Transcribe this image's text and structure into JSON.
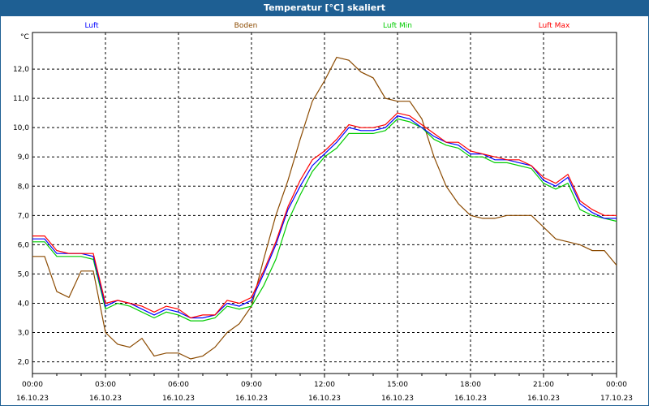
{
  "chart_data": {
    "type": "line",
    "title": "Temperatur [°C] skaliert",
    "ylabel": "°C",
    "ylim": [
      1.6,
      13.25
    ],
    "xlim": [
      0,
      24
    ],
    "yticks": [
      "2,0",
      "3,0",
      "4,0",
      "5,0",
      "6,0",
      "7,0",
      "8,0",
      "9,0",
      "10,0",
      "11,0",
      "12,0"
    ],
    "xticks": [
      {
        "time": "00:00",
        "date": "16.10.23"
      },
      {
        "time": "03:00",
        "date": "16.10.23"
      },
      {
        "time": "06:00",
        "date": "16.10.23"
      },
      {
        "time": "09:00",
        "date": "16.10.23"
      },
      {
        "time": "12:00",
        "date": "16.10.23"
      },
      {
        "time": "15:00",
        "date": "16.10.23"
      },
      {
        "time": "18:00",
        "date": "16.10.23"
      },
      {
        "time": "21:00",
        "date": "16.10.23"
      },
      {
        "time": "00:00",
        "date": "17.10.23"
      }
    ],
    "grid": true,
    "legend_placement": "top",
    "x_hours": [
      0,
      0.5,
      1,
      1.5,
      2,
      2.5,
      3,
      3.5,
      4,
      4.5,
      5,
      5.5,
      6,
      6.5,
      7,
      7.5,
      8,
      8.5,
      9,
      9.5,
      10,
      10.5,
      11,
      11.5,
      12,
      12.5,
      13,
      13.5,
      14,
      14.5,
      15,
      15.5,
      16,
      16.5,
      17,
      17.5,
      18,
      18.5,
      19,
      19.5,
      20,
      20.5,
      21,
      21.5,
      22,
      22.5,
      23,
      23.5,
      24
    ],
    "series": [
      {
        "name": "Luft",
        "color": "#0000ff",
        "values": [
          6.2,
          6.2,
          5.7,
          5.7,
          5.7,
          5.6,
          3.9,
          4.1,
          4.0,
          3.8,
          3.6,
          3.8,
          3.7,
          3.5,
          3.5,
          3.6,
          4.0,
          3.9,
          4.1,
          5.0,
          6.0,
          7.2,
          8.0,
          8.7,
          9.1,
          9.5,
          10.0,
          9.9,
          9.9,
          10.0,
          10.4,
          10.3,
          10.0,
          9.7,
          9.5,
          9.4,
          9.1,
          9.1,
          8.9,
          8.9,
          8.8,
          8.7,
          8.2,
          8.0,
          8.3,
          7.4,
          7.1,
          6.9,
          6.9
        ]
      },
      {
        "name": "Boden",
        "color": "#8b4a00",
        "values": [
          5.6,
          5.6,
          4.4,
          4.2,
          5.1,
          5.1,
          3.0,
          2.6,
          2.5,
          2.8,
          2.2,
          2.3,
          2.3,
          2.1,
          2.2,
          2.5,
          3.0,
          3.3,
          3.9,
          5.5,
          7.0,
          8.2,
          9.6,
          10.9,
          11.6,
          12.4,
          12.3,
          11.9,
          11.7,
          11.0,
          10.9,
          10.9,
          10.3,
          9.0,
          8.0,
          7.4,
          7.0,
          6.9,
          6.9,
          7.0,
          7.0,
          7.0,
          6.6,
          6.2,
          6.1,
          6.0,
          5.8,
          5.8,
          5.3
        ]
      },
      {
        "name": "Luft Min",
        "color": "#00cc00",
        "values": [
          6.1,
          6.1,
          5.6,
          5.6,
          5.6,
          5.5,
          3.8,
          4.0,
          3.9,
          3.7,
          3.5,
          3.7,
          3.6,
          3.4,
          3.4,
          3.5,
          3.9,
          3.8,
          3.9,
          4.6,
          5.5,
          6.8,
          7.7,
          8.5,
          9.0,
          9.3,
          9.8,
          9.8,
          9.8,
          9.9,
          10.3,
          10.2,
          10.0,
          9.6,
          9.4,
          9.3,
          9.0,
          9.0,
          8.8,
          8.8,
          8.7,
          8.6,
          8.1,
          7.9,
          8.1,
          7.2,
          7.0,
          6.9,
          6.8
        ]
      },
      {
        "name": "Luft Max",
        "color": "#ff0000",
        "values": [
          6.3,
          6.3,
          5.8,
          5.7,
          5.7,
          5.7,
          4.0,
          4.1,
          4.0,
          3.9,
          3.7,
          3.9,
          3.8,
          3.5,
          3.6,
          3.6,
          4.1,
          4.0,
          4.2,
          5.1,
          6.1,
          7.3,
          8.2,
          8.9,
          9.2,
          9.6,
          10.1,
          10.0,
          10.0,
          10.1,
          10.5,
          10.4,
          10.1,
          9.8,
          9.5,
          9.5,
          9.2,
          9.1,
          9.0,
          8.9,
          8.9,
          8.7,
          8.3,
          8.1,
          8.4,
          7.5,
          7.2,
          7.0,
          7.0
        ]
      }
    ]
  }
}
